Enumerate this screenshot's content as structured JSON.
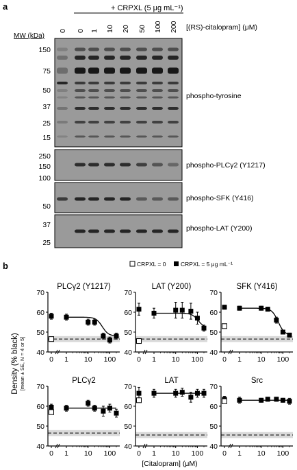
{
  "panel_a": {
    "label": "a",
    "treatment_header": "+ CRPXL (5 μg mL⁻¹)",
    "dose_unit_label": "[(RS)-citalopram] (μM)",
    "lane_labels": [
      "0",
      "0",
      "1",
      "10",
      "20",
      "50",
      "100",
      "200"
    ],
    "mw_header": "MW (kDa)",
    "blots": [
      {
        "name": "phospho-tyrosine",
        "mw_markers": [
          "150",
          "75",
          "50",
          "37",
          "25",
          "15"
        ]
      },
      {
        "name": "phospho-PLCγ2 (Y1217)",
        "mw_markers": [
          "250",
          "150",
          "100"
        ]
      },
      {
        "name": "phospho-SFK (Y416)",
        "mw_markers": [
          "50"
        ]
      },
      {
        "name": "phospho-LAT (Y200)",
        "mw_markers": [
          "37",
          "25"
        ]
      }
    ]
  },
  "panel_b": {
    "label": "b",
    "legend": {
      "open_label": "CRPXL = 0",
      "filled_label": "CRPXL = 5 μg mL⁻¹"
    },
    "ylabel": "Density (% black)",
    "ylabel_sub": "[mean ± SE, N = 4 or 5]",
    "xlabel": "[Citalopram] (μM)",
    "y_ticks": [
      "40",
      "50",
      "60",
      "70"
    ],
    "x_ticks": [
      "0",
      "1",
      "10",
      "100"
    ],
    "colors": {
      "baseline_band": "#d9d9d9",
      "marker": "#000000"
    }
  },
  "chart_data": [
    {
      "type": "scatter",
      "title": "PLCγ2 (Y1217)",
      "ylim": [
        40,
        70
      ],
      "control": 46.5,
      "baseline": 46.5,
      "fit": true,
      "x": [
        0,
        1,
        10,
        20,
        50,
        100,
        200
      ],
      "y": [
        58,
        57.5,
        55,
        55,
        48,
        46,
        48
      ],
      "err": [
        1.5,
        1.5,
        1.5,
        1.5,
        1.5,
        1.5,
        1.5
      ]
    },
    {
      "type": "scatter",
      "title": "LAT (Y200)",
      "ylim": [
        40,
        70
      ],
      "control": 45.5,
      "baseline": 46.5,
      "fit": true,
      "x": [
        0,
        1,
        10,
        20,
        50,
        100,
        200
      ],
      "y": [
        61.5,
        59.5,
        61,
        61,
        60.5,
        57,
        52
      ],
      "err": [
        3,
        2.5,
        4,
        4,
        4,
        3,
        1.5
      ]
    },
    {
      "type": "scatter",
      "title": "SFK (Y416)",
      "ylim": [
        40,
        70
      ],
      "control": 53,
      "baseline": 46.5,
      "fit": true,
      "x": [
        0,
        1,
        10,
        20,
        50,
        100,
        200
      ],
      "y": [
        62.5,
        62,
        62,
        61.5,
        56,
        50,
        48.5
      ],
      "err": [
        1,
        1,
        1,
        1,
        1.5,
        1,
        1
      ]
    },
    {
      "type": "scatter",
      "title": "PLCγ2",
      "ylim": [
        40,
        70
      ],
      "control": 57,
      "baseline": 46.5,
      "fit": false,
      "x": [
        0,
        1,
        10,
        20,
        50,
        100,
        200
      ],
      "y": [
        59.5,
        59,
        61.5,
        59,
        57.5,
        59,
        56.5
      ],
      "err": [
        1.5,
        1.5,
        1.5,
        1.5,
        2.5,
        2,
        2
      ]
    },
    {
      "type": "scatter",
      "title": "LAT",
      "ylim": [
        40,
        70
      ],
      "control": 63,
      "baseline": 45.5,
      "fit": false,
      "x": [
        0,
        1,
        10,
        20,
        50,
        100,
        200
      ],
      "y": [
        66.5,
        66.5,
        66.5,
        67,
        64.5,
        66.5,
        66.5
      ],
      "err": [
        3,
        2,
        2,
        2,
        2.5,
        2,
        2
      ]
    },
    {
      "type": "scatter",
      "title": "Src",
      "ylim": [
        40,
        70
      ],
      "control": 62.5,
      "baseline": 45.5,
      "fit": false,
      "x": [
        0,
        1,
        10,
        20,
        50,
        100,
        200
      ],
      "y": [
        63.5,
        63,
        63,
        63.5,
        63.5,
        63,
        62.5
      ],
      "err": [
        1.5,
        1.5,
        1,
        1,
        1,
        1,
        1.5
      ]
    }
  ]
}
